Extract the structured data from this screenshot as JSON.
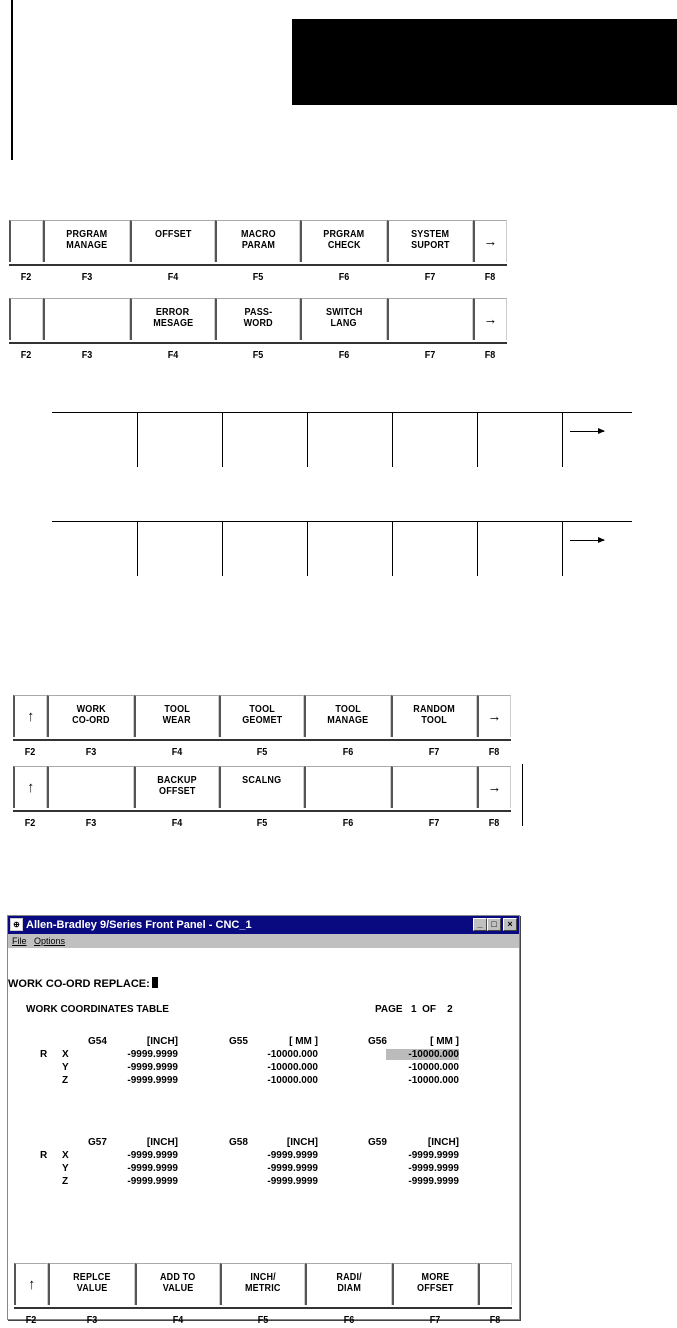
{
  "softkey_sets": [
    {
      "keys": [
        "",
        "PRGRAM\nMANAGE",
        "OFFSET",
        "MACRO\nPARAM",
        "PRGRAM\nCHECK",
        "SYSTEM\nSUPORT",
        "→"
      ],
      "fkeys": [
        "F2",
        "F3",
        "F4",
        "F5",
        "F6",
        "F7",
        "F8"
      ]
    },
    {
      "keys": [
        "",
        "",
        "ERROR\nMESAGE",
        "PASS-\nWORD",
        "SWITCH\nLANG",
        "",
        "→"
      ],
      "fkeys": [
        "F2",
        "F3",
        "F4",
        "F5",
        "F6",
        "F7",
        "F8"
      ]
    },
    {
      "keys": [
        "↑",
        "WORK\nCO-ORD",
        "TOOL\nWEAR",
        "TOOL\nGEOMET",
        "TOOL\nMANAGE",
        "RANDOM\nTOOL",
        "→"
      ],
      "fkeys": [
        "F2",
        "F3",
        "F4",
        "F5",
        "F6",
        "F7",
        "F8"
      ]
    },
    {
      "keys": [
        "↑",
        "",
        "BACKUP\nOFFSET",
        "SCALNG",
        "",
        "",
        "→"
      ],
      "fkeys": [
        "F2",
        "F3",
        "F4",
        "F5",
        "F6",
        "F7",
        "F8"
      ]
    }
  ],
  "window": {
    "title": "Allen-Bradley 9/Series Front Panel - CNC_1",
    "icon": "app-icon",
    "controls": [
      "_",
      "□",
      "×"
    ],
    "menu": [
      "File",
      "Options"
    ],
    "prompt": "WORK CO-ORD REPLACE:",
    "table_title": "WORK COORDINATES TABLE",
    "page_label": "PAGE",
    "page_current": "1",
    "page_of": "OF",
    "page_total": "2",
    "row_prefix": "R",
    "axes": [
      "X",
      "Y",
      "Z"
    ],
    "groups": [
      {
        "code": "G54",
        "unit": "[INCH]",
        "values": [
          "-9999.9999",
          "-9999.9999",
          "-9999.9999"
        ]
      },
      {
        "code": "G55",
        "unit": "[ MM ]",
        "values": [
          "-10000.000",
          "-10000.000",
          "-10000.000"
        ]
      },
      {
        "code": "G56",
        "unit": "[ MM ]",
        "values": [
          "-10000.000",
          "-10000.000",
          "-10000.000"
        ],
        "highlighted_index": 0
      },
      {
        "code": "G57",
        "unit": "[INCH]",
        "values": [
          "-9999.9999",
          "-9999.9999",
          "-9999.9999"
        ]
      },
      {
        "code": "G58",
        "unit": "[INCH]",
        "values": [
          "-9999.9999",
          "-9999.9999",
          "-9999.9999"
        ]
      },
      {
        "code": "G59",
        "unit": "[INCH]",
        "values": [
          "-9999.9999",
          "-9999.9999",
          "-9999.9999"
        ]
      }
    ],
    "softkeys": {
      "keys": [
        "↑",
        "REPLCE\nVALUE",
        "ADD TO\nVALUE",
        "INCH/\nMETRIC",
        "RADI/\nDIAM",
        "MORE\nOFFSET",
        ""
      ],
      "fkeys": [
        "F2",
        "F3",
        "F4",
        "F5",
        "F6",
        "F7",
        "F8"
      ]
    },
    "colors": {
      "titlebar": "#0a0a80",
      "highlight": "#bbbbbb",
      "chrome": "#c0c0c0"
    }
  }
}
